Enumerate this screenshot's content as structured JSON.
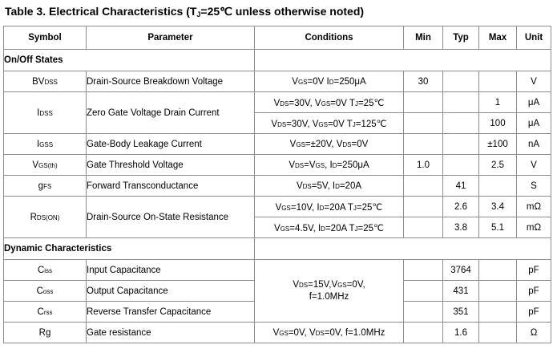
{
  "title": {
    "prefix": "Table 3.   Electrical Characteristics (T",
    "sub": "J",
    "suffix": "=25℃  unless otherwise noted)"
  },
  "headers": [
    "Symbol",
    "Parameter",
    "Conditions",
    "Min",
    "Typ",
    "Max",
    "Unit"
  ],
  "sections": {
    "onoff": "On/Off States",
    "dynamic": "Dynamic Characteristics"
  },
  "rows": {
    "bvdss": {
      "sym_main": "BV",
      "sym_sub": "DSS",
      "param": "Drain-Source Breakdown Voltage",
      "cond": [
        {
          "t": "V"
        },
        {
          "t": "GS",
          "s": 1
        },
        {
          "t": "=0V I"
        },
        {
          "t": "D",
          "s": 1
        },
        {
          "t": "=250μA"
        }
      ],
      "min": "30",
      "typ": "",
      "max": "",
      "unit": "V"
    },
    "idss": {
      "sym_main": "I",
      "sym_sub": "DSS",
      "param": "Zero Gate Voltage Drain Current",
      "a": {
        "cond": [
          {
            "t": "V"
          },
          {
            "t": "DS",
            "s": 1
          },
          {
            "t": "=30V, V"
          },
          {
            "t": "GS",
            "s": 1
          },
          {
            "t": "=0V T"
          },
          {
            "t": "J",
            "s": 1
          },
          {
            "t": "=25℃"
          }
        ],
        "max": "1",
        "unit": "μA"
      },
      "b": {
        "cond": [
          {
            "t": "V"
          },
          {
            "t": "DS",
            "s": 1
          },
          {
            "t": "=30V, V"
          },
          {
            "t": "GS",
            "s": 1
          },
          {
            "t": "=0V T"
          },
          {
            "t": "J",
            "s": 1
          },
          {
            "t": "=125℃"
          }
        ],
        "max": "100",
        "unit": "μA"
      }
    },
    "igss": {
      "sym_main": "I",
      "sym_sub": "GSS",
      "param": "Gate-Body Leakage Current",
      "cond": [
        {
          "t": "V"
        },
        {
          "t": "GS",
          "s": 1
        },
        {
          "t": "=±20V, V"
        },
        {
          "t": "DS",
          "s": 1
        },
        {
          "t": "=0V"
        }
      ],
      "min": "",
      "typ": "",
      "max": "±100",
      "unit": "nA"
    },
    "vgsth": {
      "sym_main": "V",
      "sym_sub": "GS(th)",
      "param": "Gate Threshold Voltage",
      "cond": [
        {
          "t": "V"
        },
        {
          "t": "DS",
          "s": 1
        },
        {
          "t": "=V"
        },
        {
          "t": "GS",
          "s": 1
        },
        {
          "t": ", I"
        },
        {
          "t": "D",
          "s": 1
        },
        {
          "t": "=250μA"
        }
      ],
      "min": "1.0",
      "typ": "",
      "max": "2.5",
      "unit": "V"
    },
    "gfs": {
      "sym_main": "g",
      "sym_sub": "FS",
      "param": "Forward Transconductance",
      "cond": [
        {
          "t": "V"
        },
        {
          "t": "DS",
          "s": 1
        },
        {
          "t": "=5V, I"
        },
        {
          "t": "D",
          "s": 1
        },
        {
          "t": "=20A"
        }
      ],
      "min": "",
      "typ": "41",
      "max": "",
      "unit": "S"
    },
    "rdson": {
      "sym_main": "R",
      "sym_sub": "DS(ON)",
      "param": "Drain-Source On-State Resistance",
      "a": {
        "cond": [
          {
            "t": "V"
          },
          {
            "t": "GS",
            "s": 1
          },
          {
            "t": "=10V, I"
          },
          {
            "t": "D",
            "s": 1
          },
          {
            "t": "=20A T"
          },
          {
            "t": "J",
            "s": 1
          },
          {
            "t": "=25℃"
          }
        ],
        "typ": "2.6",
        "max": "3.4",
        "unit": "mΩ"
      },
      "b": {
        "cond": [
          {
            "t": "V"
          },
          {
            "t": "GS",
            "s": 1
          },
          {
            "t": "=4.5V, I"
          },
          {
            "t": "D",
            "s": 1
          },
          {
            "t": "=20A T"
          },
          {
            "t": "J",
            "s": 1
          },
          {
            "t": "=25℃"
          }
        ],
        "typ": "3.8",
        "max": "5.1",
        "unit": "mΩ"
      }
    },
    "ciss": {
      "sym_main": "C",
      "sym_sub": "iss",
      "param": "Input Capacitance",
      "typ": "3764",
      "unit": "pF"
    },
    "coss": {
      "sym_main": "C",
      "sym_sub": "oss",
      "param": "Output Capacitance",
      "typ": "431",
      "unit": "pF"
    },
    "crss": {
      "sym_main": "C",
      "sym_sub": "rss",
      "param": "Reverse Transfer Capacitance",
      "typ": "351",
      "unit": "pF"
    },
    "cap_cond": {
      "line1": [
        {
          "t": "V"
        },
        {
          "t": "DS",
          "s": 1
        },
        {
          "t": "=15V,V"
        },
        {
          "t": "GS",
          "s": 1
        },
        {
          "t": "=0V,"
        }
      ],
      "line2": "f=1.0MHz"
    },
    "rg": {
      "sym": "Rg",
      "param": "Gate resistance",
      "cond": [
        {
          "t": "V"
        },
        {
          "t": "GS",
          "s": 1
        },
        {
          "t": "=0V, V"
        },
        {
          "t": "DS",
          "s": 1
        },
        {
          "t": "=0V, f=1.0MHz"
        }
      ],
      "typ": "1.6",
      "unit": "Ω"
    }
  }
}
